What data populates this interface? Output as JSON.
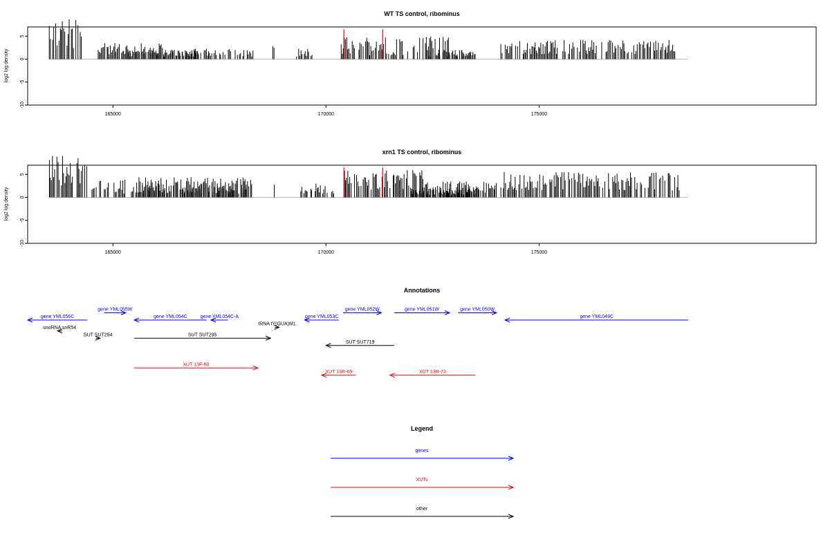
{
  "chart_data": [
    {
      "type": "bar",
      "title": "WT TS control, ribominus",
      "ylabel": "log2 log density",
      "xlim": [
        163000,
        181500
      ],
      "ylim": [
        -10,
        7
      ],
      "yticks": [
        -10,
        -5,
        0,
        5
      ],
      "ytick_labels": [
        "-10",
        "-5",
        "0",
        "5"
      ],
      "xticks": [
        165000,
        170000,
        175000
      ],
      "xtick_labels": [
        "165000",
        "170000",
        "175000"
      ],
      "baseline_range": [
        163500,
        178500
      ],
      "highlight_color": "#ff0000",
      "bar_color": "#000000",
      "segments": [
        {
          "range": [
            163500,
            164300
          ],
          "min": -9.5,
          "max": -2,
          "dir": -1
        },
        {
          "range": [
            164650,
            166200
          ],
          "min": 0.8,
          "max": 3.5,
          "dir": 1
        },
        {
          "range": [
            166200,
            168300
          ],
          "min": 0.5,
          "max": 2.3,
          "dir": 1
        },
        {
          "range": [
            165300,
            167000
          ],
          "min": -2.0,
          "max": -0.5,
          "dir": -1
        },
        {
          "range": [
            168750,
            168800
          ],
          "min": 2.0,
          "max": 3.0,
          "dir": 1
        },
        {
          "range": [
            169300,
            169700
          ],
          "min": -2.5,
          "max": -0.5,
          "dir": -1
        },
        {
          "range": [
            170350,
            172900
          ],
          "min": 0.8,
          "max": 5,
          "dir": 1
        },
        {
          "range": [
            172400,
            173400
          ],
          "min": 0.5,
          "max": 2,
          "dir": 1
        },
        {
          "range": [
            173000,
            173500
          ],
          "min": -2,
          "max": -0.5,
          "dir": -1
        },
        {
          "range": [
            174100,
            178200
          ],
          "min": -4.2,
          "max": -1,
          "dir": -1
        },
        {
          "range": [
            177950,
            178000
          ],
          "min": 1.5,
          "max": 2.5,
          "dir": 1
        }
      ],
      "highlights": [
        {
          "x": 170420,
          "value": 6.5
        },
        {
          "x": 171330,
          "value": 6.5
        }
      ]
    },
    {
      "type": "bar",
      "title": "xrn1 TS control, ribominus",
      "ylabel": "log2 log density",
      "xlim": [
        163000,
        181500
      ],
      "ylim": [
        -10,
        7
      ],
      "yticks": [
        -10,
        -5,
        0,
        5
      ],
      "ytick_labels": [
        "-10",
        "-5",
        "0",
        "5"
      ],
      "xticks": [
        165000,
        170000,
        175000
      ],
      "xtick_labels": [
        "165000",
        "170000",
        "175000"
      ],
      "baseline_range": [
        163500,
        178500
      ],
      "highlight_color": "#ff0000",
      "bar_color": "#000000",
      "segments": [
        {
          "range": [
            163500,
            164400
          ],
          "min": -9.5,
          "max": -2.5,
          "dir": -1
        },
        {
          "range": [
            164450,
            165300
          ],
          "min": 0.8,
          "max": 4,
          "dir": 1
        },
        {
          "range": [
            165500,
            168300
          ],
          "min": 0.8,
          "max": 4.5,
          "dir": 1
        },
        {
          "range": [
            165400,
            168200
          ],
          "min": -3.5,
          "max": -0.8,
          "dir": -1
        },
        {
          "range": [
            168750,
            168800
          ],
          "min": 2.0,
          "max": 3.0,
          "dir": 1
        },
        {
          "range": [
            169400,
            170200
          ],
          "min": -3,
          "max": -0.8,
          "dir": -1
        },
        {
          "range": [
            170400,
            172300
          ],
          "min": 1.5,
          "max": 6,
          "dir": 1
        },
        {
          "range": [
            172300,
            174000
          ],
          "min": 0.8,
          "max": 3.5,
          "dir": 1
        },
        {
          "range": [
            172000,
            173600
          ],
          "min": -2.2,
          "max": -0.5,
          "dir": -1
        },
        {
          "range": [
            174100,
            178300
          ],
          "min": -5.5,
          "max": -1.5,
          "dir": -1
        }
      ],
      "highlights": [
        {
          "x": 170420,
          "value": 6.5
        },
        {
          "x": 171330,
          "value": 6.5
        }
      ]
    }
  ],
  "annotations": {
    "title": "Annotations",
    "features": [
      {
        "label": "gene YML056C",
        "color": "#0000ff",
        "start": 163000,
        "end": 164400,
        "dir": "left",
        "row": 0
      },
      {
        "label": "gene YML055W",
        "color": "#0000ff",
        "start": 164800,
        "end": 165300,
        "dir": "right",
        "row": -1
      },
      {
        "label": "gene YML054C",
        "color": "#0000ff",
        "start": 165500,
        "end": 167200,
        "dir": "left",
        "row": 0
      },
      {
        "label": "gene YML054C-A",
        "color": "#0000ff",
        "start": 167300,
        "end": 167700,
        "dir": "left",
        "row": 0
      },
      {
        "label": "gene YML053C",
        "color": "#0000ff",
        "start": 169500,
        "end": 170300,
        "dir": "left",
        "row": 0
      },
      {
        "label": "gene YML052W",
        "color": "#0000ff",
        "start": 170400,
        "end": 171300,
        "dir": "right",
        "row": -1
      },
      {
        "label": "gene YML051W",
        "color": "#0000ff",
        "start": 171600,
        "end": 172900,
        "dir": "right",
        "row": -1
      },
      {
        "label": "gene YML050W",
        "color": "#0000ff",
        "start": 173100,
        "end": 174000,
        "dir": "right",
        "row": -1
      },
      {
        "label": "gene YML049C",
        "color": "#0000ff",
        "start": 174200,
        "end": 178500,
        "dir": "left",
        "row": 0
      },
      {
        "label": "snoRNA snR54",
        "color": "#000000",
        "start": 163700,
        "end": 163800,
        "dir": "left",
        "row": 1.5
      },
      {
        "label": "tRNA tY(GUA)M1",
        "color": "#000000",
        "start": 168800,
        "end": 168900,
        "dir": "right",
        "row": 1
      },
      {
        "label": "SUT SUT294",
        "color": "#000000",
        "start": 164600,
        "end": 164700,
        "dir": "right",
        "row": 2.5
      },
      {
        "label": "SUT SUT295",
        "color": "#000000",
        "start": 165500,
        "end": 168700,
        "dir": "right",
        "row": 2.5
      },
      {
        "label": "SUT SUT719",
        "color": "#000000",
        "start": 170000,
        "end": 171600,
        "dir": "left",
        "row": 3.5
      },
      {
        "label": "XUT 13F-80",
        "color": "#ff0000",
        "start": 165500,
        "end": 168400,
        "dir": "right",
        "row": 6.6
      },
      {
        "label": "XUT 13R-69",
        "color": "#ff0000",
        "start": 169900,
        "end": 170700,
        "dir": "left",
        "row": 7.6
      },
      {
        "label": "XUT 13R-73",
        "color": "#ff0000",
        "start": 171500,
        "end": 173500,
        "dir": "left",
        "row": 7.6
      }
    ]
  },
  "legend": {
    "title": "Legend",
    "items": [
      {
        "label": "genes",
        "color": "#0000ff"
      },
      {
        "label": "XUTs",
        "color": "#ff0000"
      },
      {
        "label": "other",
        "color": "#000000"
      }
    ]
  }
}
